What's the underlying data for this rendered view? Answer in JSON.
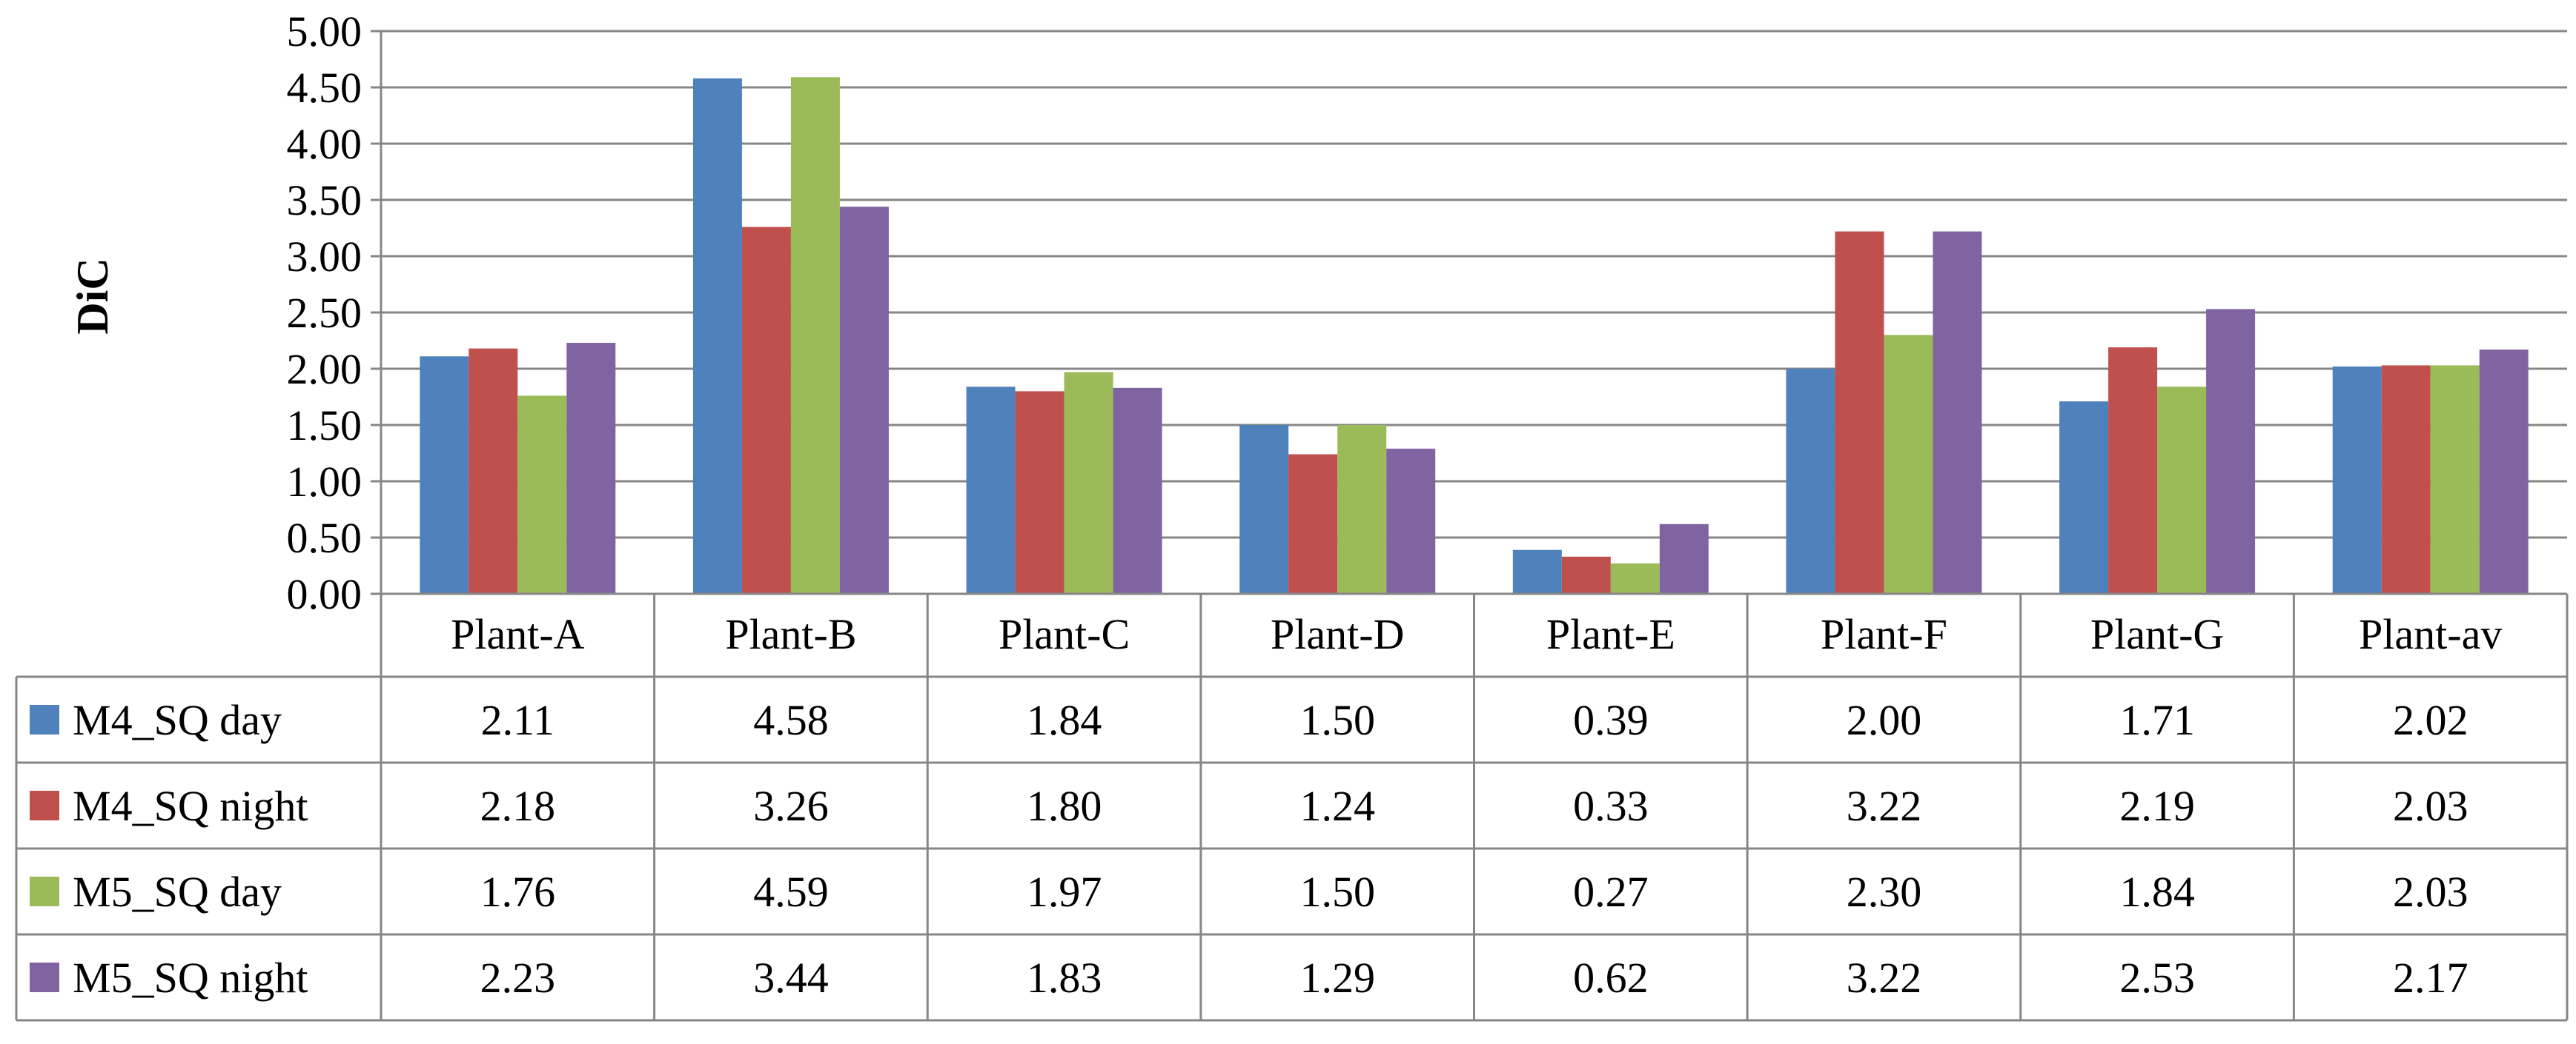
{
  "chart_data": {
    "type": "bar",
    "title": "",
    "xlabel": "",
    "ylabel": "DiC",
    "ylim": [
      0,
      5
    ],
    "ytick_labels": [
      "0.00",
      "0.50",
      "1.00",
      "1.50",
      "2.00",
      "2.50",
      "3.00",
      "3.50",
      "4.00",
      "4.50",
      "5.00"
    ],
    "grid": true,
    "legend": "data-table-below",
    "categories": [
      "Plant-A",
      "Plant-B",
      "Plant-C",
      "Plant-D",
      "Plant-E",
      "Plant-F",
      "Plant-G",
      "Plant-av"
    ],
    "series": [
      {
        "name": "M4_SQ day",
        "color": "#4f81bd",
        "values": [
          2.11,
          4.58,
          1.84,
          1.5,
          0.39,
          2.0,
          1.71,
          2.02
        ],
        "labels": [
          "2.11",
          "4.58",
          "1.84",
          "1.50",
          "0.39",
          "2.00",
          "1.71",
          "2.02"
        ]
      },
      {
        "name": "M4_SQ night",
        "color": "#c0504d",
        "values": [
          2.18,
          3.26,
          1.8,
          1.24,
          0.33,
          3.22,
          2.19,
          2.03
        ],
        "labels": [
          "2.18",
          "3.26",
          "1.80",
          "1.24",
          "0.33",
          "3.22",
          "2.19",
          "2.03"
        ]
      },
      {
        "name": "M5_SQ day",
        "color": "#9bbb59",
        "values": [
          1.76,
          4.59,
          1.97,
          1.5,
          0.27,
          2.3,
          1.84,
          2.03
        ],
        "labels": [
          "1.76",
          "4.59",
          "1.97",
          "1.50",
          "0.27",
          "2.30",
          "1.84",
          "2.03"
        ]
      },
      {
        "name": "M5_SQ night",
        "color": "#8064a2",
        "values": [
          2.23,
          3.44,
          1.83,
          1.29,
          0.62,
          3.22,
          2.53,
          2.17
        ],
        "labels": [
          "2.23",
          "3.44",
          "1.83",
          "1.29",
          "0.62",
          "3.22",
          "2.53",
          "2.17"
        ]
      }
    ]
  }
}
